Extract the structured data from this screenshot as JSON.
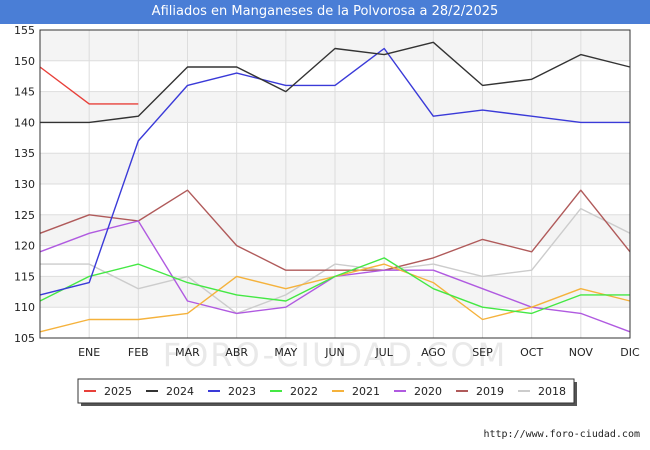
{
  "header": {
    "title": "Afiliados en Manganeses de la Polvorosa a 28/2/2025"
  },
  "footer": {
    "url": "http://www.foro-ciudad.com"
  },
  "watermark": "FORO-CIUDAD.COM",
  "chart_data": {
    "type": "line",
    "title": "Afiliados en Manganeses de la Polvorosa a 28/2/2025",
    "categories": [
      "",
      "ENE",
      "FEB",
      "MAR",
      "ABR",
      "MAY",
      "JUN",
      "JUL",
      "AGO",
      "SEP",
      "OCT",
      "NOV",
      "DIC"
    ],
    "yticks": [
      105,
      110,
      115,
      120,
      125,
      130,
      135,
      140,
      145,
      150,
      155
    ],
    "ylim": [
      105,
      155
    ],
    "grid": true,
    "legend_position": "bottom",
    "series": [
      {
        "name": "2025",
        "color": "#e8403a",
        "values": [
          149,
          143,
          143,
          null,
          null,
          null,
          null,
          null,
          null,
          null,
          null,
          null,
          null
        ]
      },
      {
        "name": "2024",
        "color": "#333333",
        "values": [
          140,
          140,
          141,
          149,
          149,
          145,
          152,
          151,
          153,
          146,
          147,
          151,
          149
        ]
      },
      {
        "name": "2023",
        "color": "#3a3ad8",
        "values": [
          112,
          114,
          137,
          146,
          148,
          146,
          146,
          152,
          141,
          142,
          141,
          140,
          140
        ]
      },
      {
        "name": "2022",
        "color": "#44e844",
        "values": [
          111,
          115,
          117,
          114,
          112,
          111,
          115,
          118,
          113,
          110,
          109,
          112,
          112
        ]
      },
      {
        "name": "2021",
        "color": "#f5b23c",
        "values": [
          106,
          108,
          108,
          109,
          115,
          113,
          115,
          117,
          114,
          108,
          110,
          113,
          111
        ]
      },
      {
        "name": "2020",
        "color": "#b05ae0",
        "values": [
          119,
          122,
          124,
          111,
          109,
          110,
          115,
          116,
          116,
          113,
          110,
          109,
          106
        ]
      },
      {
        "name": "2019",
        "color": "#b05a5a",
        "values": [
          122,
          125,
          124,
          129,
          120,
          116,
          116,
          116,
          118,
          121,
          119,
          129,
          119
        ]
      },
      {
        "name": "2018",
        "color": "#cccccc",
        "values": [
          117,
          117,
          113,
          115,
          109,
          112,
          117,
          116,
          117,
          115,
          116,
          126,
          122
        ]
      }
    ]
  }
}
